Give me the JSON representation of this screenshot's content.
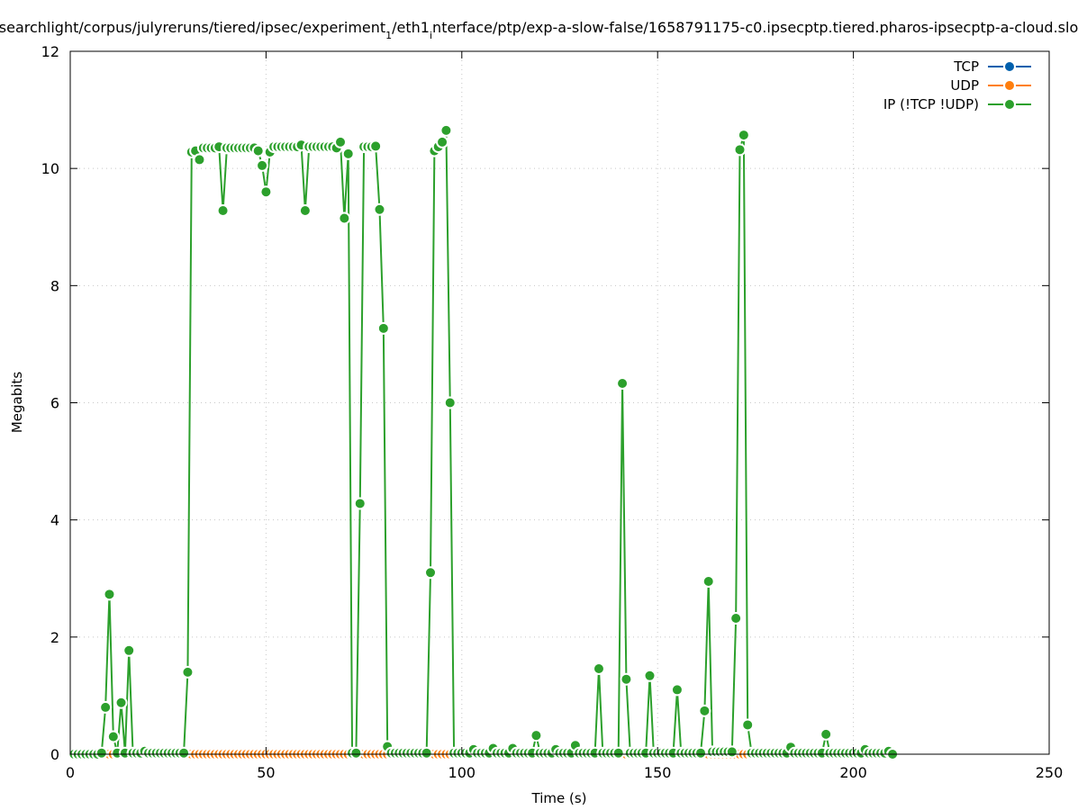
{
  "chart_data": {
    "type": "line",
    "title_parts": [
      {
        "text": "searchlight/corpus/julyreruns/tiered/ipsec/experiment",
        "sub": false
      },
      {
        "text": "1",
        "sub": true
      },
      {
        "text": "/eth1",
        "sub": false
      },
      {
        "text": "i",
        "sub": true
      },
      {
        "text": "nterface/ptp/exp-a-slow-false/1658791175-c0.ipsecptp.tiered.pharos-ipsecptp-a-cloud.slo",
        "sub": false
      }
    ],
    "xlabel": "Time (s)",
    "ylabel": "Megabits",
    "xlim": [
      0,
      250
    ],
    "ylim": [
      0,
      12
    ],
    "xticks": [
      0,
      50,
      100,
      150,
      200,
      250
    ],
    "yticks": [
      0,
      2,
      4,
      6,
      8,
      10,
      12
    ],
    "grid": true,
    "legend_position": "top-right",
    "x_start": 1,
    "x_step": 1,
    "series": [
      {
        "name": "TCP",
        "color": "#0060ad",
        "y": [
          0,
          0,
          0,
          0,
          0,
          0,
          0,
          0,
          0,
          0,
          0,
          0,
          0,
          0,
          0,
          0,
          0,
          0,
          0,
          0,
          0,
          0,
          0,
          0,
          0,
          0,
          0,
          0,
          0,
          0,
          0,
          0,
          0,
          0,
          0,
          0,
          0,
          0,
          0,
          0,
          0,
          0,
          0,
          0,
          0,
          0,
          0,
          0,
          0,
          0,
          0,
          0,
          0,
          0,
          0,
          0,
          0,
          0,
          0,
          0,
          0,
          0,
          0,
          0,
          0,
          0,
          0,
          0,
          0,
          0,
          0,
          0,
          0,
          0,
          0,
          0,
          0,
          0,
          0,
          0,
          0,
          0,
          0,
          0,
          0,
          0,
          0,
          0,
          0,
          0,
          0,
          0,
          0,
          0,
          0,
          0,
          0,
          0,
          0,
          0,
          0,
          0,
          0,
          0,
          0,
          0,
          0,
          0,
          0,
          0,
          0,
          0,
          0,
          0,
          0,
          0,
          0,
          0,
          0,
          0,
          0,
          0,
          0,
          0,
          0,
          0,
          0,
          0,
          0,
          0,
          0,
          0,
          0,
          0,
          0,
          0,
          0,
          0,
          0,
          0,
          0,
          0,
          0,
          0,
          0,
          0,
          0,
          0,
          0,
          0,
          0,
          0,
          0,
          0,
          0,
          0,
          0,
          0,
          0,
          0,
          0,
          0,
          0,
          0,
          0,
          0,
          0,
          0,
          0,
          0,
          0,
          0,
          0,
          0,
          0,
          0,
          0,
          0,
          0,
          0,
          0,
          0,
          0,
          0,
          0,
          0,
          0,
          0,
          0,
          0,
          0,
          0,
          0,
          0,
          0,
          0,
          0,
          0,
          0,
          0,
          0,
          0,
          0,
          0,
          0,
          0,
          0,
          0,
          0,
          0
        ]
      },
      {
        "name": "UDP",
        "color": "#ff7f0e",
        "y": [
          0,
          0,
          0,
          0,
          0,
          0,
          0,
          0,
          0,
          0,
          0,
          0,
          0,
          0,
          0,
          0,
          0,
          0,
          0,
          0,
          0,
          0,
          0,
          0,
          0,
          0,
          0,
          0,
          0,
          0,
          0,
          0,
          0,
          0,
          0,
          0,
          0,
          0,
          0,
          0,
          0,
          0,
          0,
          0,
          0,
          0,
          0,
          0,
          0,
          0,
          0,
          0,
          0,
          0,
          0,
          0,
          0,
          0,
          0,
          0,
          0,
          0,
          0,
          0,
          0,
          0,
          0,
          0,
          0,
          0,
          0,
          0,
          0,
          0,
          0,
          0,
          0,
          0,
          0,
          0,
          0,
          0,
          0,
          0,
          0,
          0,
          0,
          0,
          0,
          0,
          0,
          0,
          0,
          0,
          0,
          0,
          0,
          0,
          0,
          0,
          0,
          0,
          0,
          0,
          0,
          0,
          0,
          0,
          0,
          0,
          0,
          0,
          0,
          0,
          0,
          0,
          0,
          0,
          0,
          0,
          0,
          0,
          0,
          0,
          0,
          0,
          0,
          0,
          0,
          0,
          0,
          0,
          0,
          0,
          0,
          0,
          0,
          0,
          0,
          0,
          0,
          0,
          0,
          0,
          0,
          0,
          0,
          0,
          0,
          0,
          0,
          0,
          0,
          0,
          0,
          0,
          0,
          0,
          0,
          0,
          0,
          0,
          0,
          0,
          0,
          0,
          0,
          0,
          0,
          0,
          0,
          0,
          0,
          0,
          0,
          0,
          0,
          0,
          0,
          0,
          0,
          0,
          0,
          0,
          0,
          0,
          0,
          0,
          0,
          0,
          0,
          0,
          0,
          0,
          0,
          0,
          0,
          0,
          0,
          0,
          0,
          0,
          0,
          0,
          0,
          0,
          0,
          0,
          0,
          0
        ]
      },
      {
        "name": "IP (!TCP  !UDP)",
        "color": "#2ca02c",
        "y": [
          0,
          0,
          0,
          0,
          0,
          0,
          0,
          0.02,
          0.8,
          2.73,
          0.3,
          0.02,
          0.88,
          0.02,
          1.77,
          0.02,
          0.02,
          0.02,
          0.05,
          0.02,
          0.02,
          0.02,
          0.02,
          0.02,
          0.02,
          0.02,
          0.02,
          0.02,
          0.02,
          1.4,
          10.28,
          10.3,
          10.15,
          10.35,
          10.35,
          10.35,
          10.35,
          10.37,
          9.28,
          10.35,
          10.35,
          10.35,
          10.35,
          10.35,
          10.35,
          10.35,
          10.35,
          10.3,
          10.05,
          9.6,
          10.28,
          10.37,
          10.37,
          10.37,
          10.37,
          10.37,
          10.37,
          10.37,
          10.4,
          9.28,
          10.37,
          10.37,
          10.37,
          10.37,
          10.37,
          10.37,
          10.37,
          10.35,
          10.45,
          9.15,
          10.25,
          0.02,
          0.02,
          4.28,
          10.37,
          10.37,
          10.37,
          10.38,
          9.3,
          7.27,
          0.13,
          0.02,
          0.02,
          0.02,
          0.02,
          0.02,
          0.02,
          0.02,
          0.02,
          0.02,
          0.02,
          3.1,
          10.3,
          10.37,
          10.45,
          10.65,
          6.0,
          0.02,
          0.02,
          0.02,
          0.02,
          0.02,
          0.08,
          0.02,
          0.02,
          0.02,
          0.02,
          0.1,
          0.02,
          0.02,
          0.02,
          0.02,
          0.1,
          0.02,
          0.02,
          0.02,
          0.02,
          0.02,
          0.32,
          0.02,
          0.02,
          0.02,
          0.02,
          0.08,
          0.02,
          0.02,
          0.02,
          0.02,
          0.15,
          0.02,
          0.02,
          0.02,
          0.02,
          0.02,
          1.46,
          0.02,
          0.02,
          0.02,
          0.02,
          0.02,
          6.33,
          1.28,
          0.02,
          0.02,
          0.02,
          0.02,
          0.02,
          1.34,
          0.02,
          0.02,
          0.02,
          0.02,
          0.02,
          0.02,
          1.1,
          0.02,
          0.02,
          0.02,
          0.02,
          0.02,
          0.02,
          0.74,
          2.95,
          0.04,
          0.04,
          0.04,
          0.04,
          0.04,
          0.04,
          2.32,
          10.32,
          10.57,
          0.5,
          0.02,
          0.02,
          0.02,
          0.02,
          0.02,
          0.02,
          0.02,
          0.02,
          0.02,
          0.02,
          0.12,
          0.02,
          0.02,
          0.02,
          0.02,
          0.02,
          0.02,
          0.02,
          0.02,
          0.34,
          0.02,
          0.02,
          0.02,
          0.02,
          0.02,
          0.02,
          0.02,
          0.02,
          0.02,
          0.08,
          0.02,
          0.02,
          0.02,
          0.02,
          0.02,
          0.05,
          0
        ]
      }
    ]
  }
}
